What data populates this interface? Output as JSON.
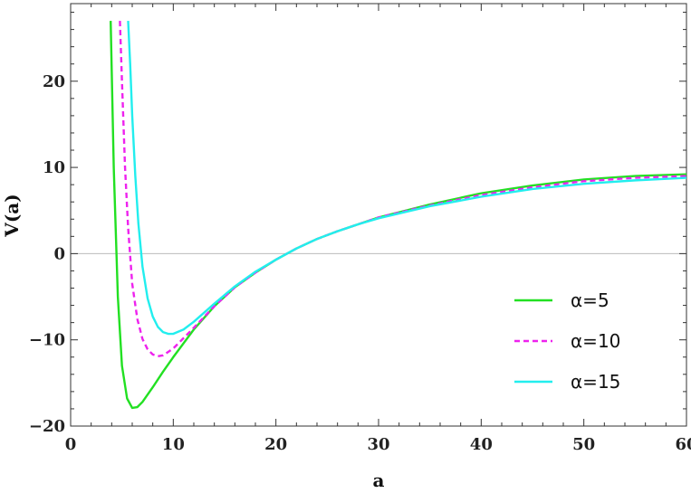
{
  "chart_data": {
    "type": "line",
    "title": "",
    "xlabel": "a",
    "ylabel": "V(a)",
    "xlim": [
      0,
      60
    ],
    "ylim": [
      -20,
      29
    ],
    "xticks": [
      0,
      10,
      20,
      30,
      40,
      50,
      60
    ],
    "xtick_labels": [
      "0",
      "10",
      "20",
      "30",
      "40",
      "50",
      "60"
    ],
    "yticks": [
      -20,
      -10,
      0,
      10,
      20
    ],
    "ytick_labels": [
      "−20",
      "−10",
      "0",
      "10",
      "20"
    ],
    "grid": false,
    "zero_line": true,
    "legend_position": "right-middle",
    "series": [
      {
        "name": "α=5",
        "color": "#22e022",
        "dash": "solid",
        "x": [
          3.9,
          4.2,
          4.6,
          5.0,
          5.5,
          6.0,
          6.5,
          7.0,
          8.0,
          9.0,
          10.0,
          12.0,
          14.0,
          16.0,
          18.0,
          20.0,
          22.0,
          24.0,
          26.0,
          28.0,
          30.0,
          35.0,
          40.0,
          45.0,
          50.0,
          55.0,
          60.0
        ],
        "y": [
          27,
          10,
          -5,
          -13,
          -16.8,
          -17.9,
          -17.8,
          -17.2,
          -15.5,
          -13.7,
          -12.0,
          -8.8,
          -6.1,
          -3.9,
          -2.2,
          -0.7,
          0.6,
          1.7,
          2.6,
          3.4,
          4.2,
          5.7,
          7.0,
          7.9,
          8.6,
          9.0,
          9.2
        ]
      },
      {
        "name": "α=10",
        "color": "#ee22ee",
        "dash": "dashed",
        "x": [
          4.8,
          5.0,
          5.3,
          5.6,
          6.0,
          6.5,
          7.0,
          7.5,
          8.0,
          8.5,
          9.0,
          10.0,
          12.0,
          14.0,
          16.0,
          18.0,
          20.0,
          22.0,
          24.0,
          26.0,
          28.0,
          30.0,
          35.0,
          40.0,
          45.0,
          50.0,
          55.0,
          60.0
        ],
        "y": [
          27,
          20,
          10,
          3,
          -3.5,
          -7.6,
          -9.9,
          -11.1,
          -11.7,
          -11.9,
          -11.8,
          -11.0,
          -8.6,
          -6.1,
          -3.9,
          -2.2,
          -0.7,
          0.6,
          1.7,
          2.6,
          3.4,
          4.2,
          5.6,
          6.8,
          7.7,
          8.4,
          8.8,
          9.0
        ]
      },
      {
        "name": "α=15",
        "color": "#22eeee",
        "dash": "solid",
        "x": [
          5.6,
          5.8,
          6.0,
          6.3,
          6.6,
          7.0,
          7.5,
          8.0,
          8.5,
          9.0,
          9.5,
          10.0,
          11.0,
          12.0,
          14.0,
          16.0,
          18.0,
          20.0,
          22.0,
          24.0,
          26.0,
          28.0,
          30.0,
          35.0,
          40.0,
          45.0,
          50.0,
          55.0,
          60.0
        ],
        "y": [
          27,
          22,
          16,
          9,
          3.5,
          -1.5,
          -5.2,
          -7.3,
          -8.5,
          -9.1,
          -9.3,
          -9.3,
          -8.8,
          -7.9,
          -5.8,
          -3.8,
          -2.1,
          -0.7,
          0.6,
          1.7,
          2.6,
          3.4,
          4.1,
          5.5,
          6.6,
          7.5,
          8.1,
          8.5,
          8.8
        ]
      }
    ]
  }
}
